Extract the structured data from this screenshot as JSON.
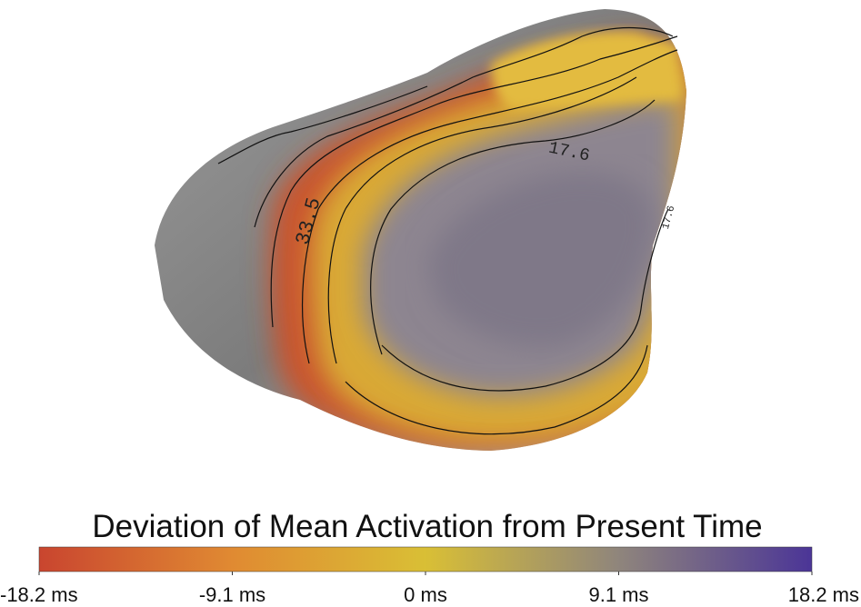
{
  "heart": {
    "contour_labels": [
      "33.5",
      "17.6",
      "17.6"
    ]
  },
  "colorbar": {
    "title": "Deviation of Mean Activation from Present Time",
    "range": [
      -18.2,
      18.2
    ],
    "colors": [
      "#c9452f",
      "#e08a32",
      "#d9bf35",
      "#8f857c",
      "#4b3597"
    ],
    "ticks": [
      {
        "value": -18.2,
        "label": "-18.2 ms"
      },
      {
        "value": -9.1,
        "label": "-9.1 ms"
      },
      {
        "value": 0,
        "label": "0 ms"
      },
      {
        "value": 9.1,
        "label": "9.1 ms"
      },
      {
        "value": 18.2,
        "label": "18.2 ms"
      }
    ]
  }
}
